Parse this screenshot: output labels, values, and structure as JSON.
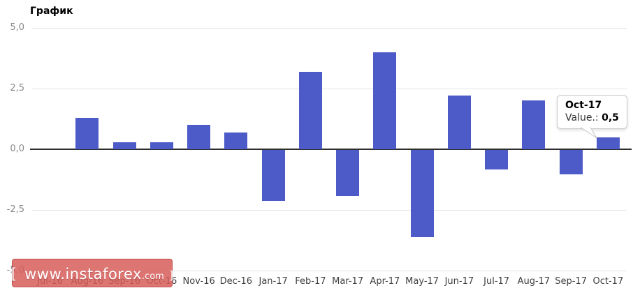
{
  "title": "График",
  "chart_data": {
    "type": "bar",
    "title": "График",
    "categories": [
      "Jul-16",
      "Aug-16",
      "Sep-16",
      "Oct-16",
      "Nov-16",
      "Dec-16",
      "Jan-17",
      "Feb-17",
      "Mar-17",
      "Apr-17",
      "May-17",
      "Jun-17",
      "Jul-17",
      "Aug-17",
      "Sep-17",
      "Oct-17"
    ],
    "values": [
      0,
      1.3,
      0.3,
      0.3,
      1.0,
      0.7,
      -2.1,
      3.2,
      -1.9,
      4.0,
      -3.6,
      2.2,
      -0.8,
      2.0,
      -1.0,
      0.5
    ],
    "xlabel": "",
    "ylabel": "",
    "ylim": [
      -5,
      5
    ],
    "y_tick_values": [
      5,
      2.5,
      0,
      -2.5,
      -5
    ],
    "y_tick_labels": [
      "5,0",
      "2,5",
      "0,0",
      "-2,5",
      "-5,0"
    ],
    "grid": true,
    "legend": false,
    "bar_color": "#4d5bc9"
  },
  "tooltip": {
    "category": "Oct-17",
    "value_label": "Value.:",
    "value": "0,5"
  },
  "watermark": {
    "bracket_left": "[",
    "text_main": "www.instaforex",
    "text_suffix": ".com",
    "bracket_right": "]"
  },
  "colors": {
    "bar": "#4d5bc9",
    "gridline": "#e4e4e4",
    "zero_line": "#2d2d2d",
    "y_label": "#8a8a8a",
    "x_label": "#3f3f3f",
    "watermark_bg": "#d65a58",
    "tooltip_border": "#c9c9c9"
  }
}
